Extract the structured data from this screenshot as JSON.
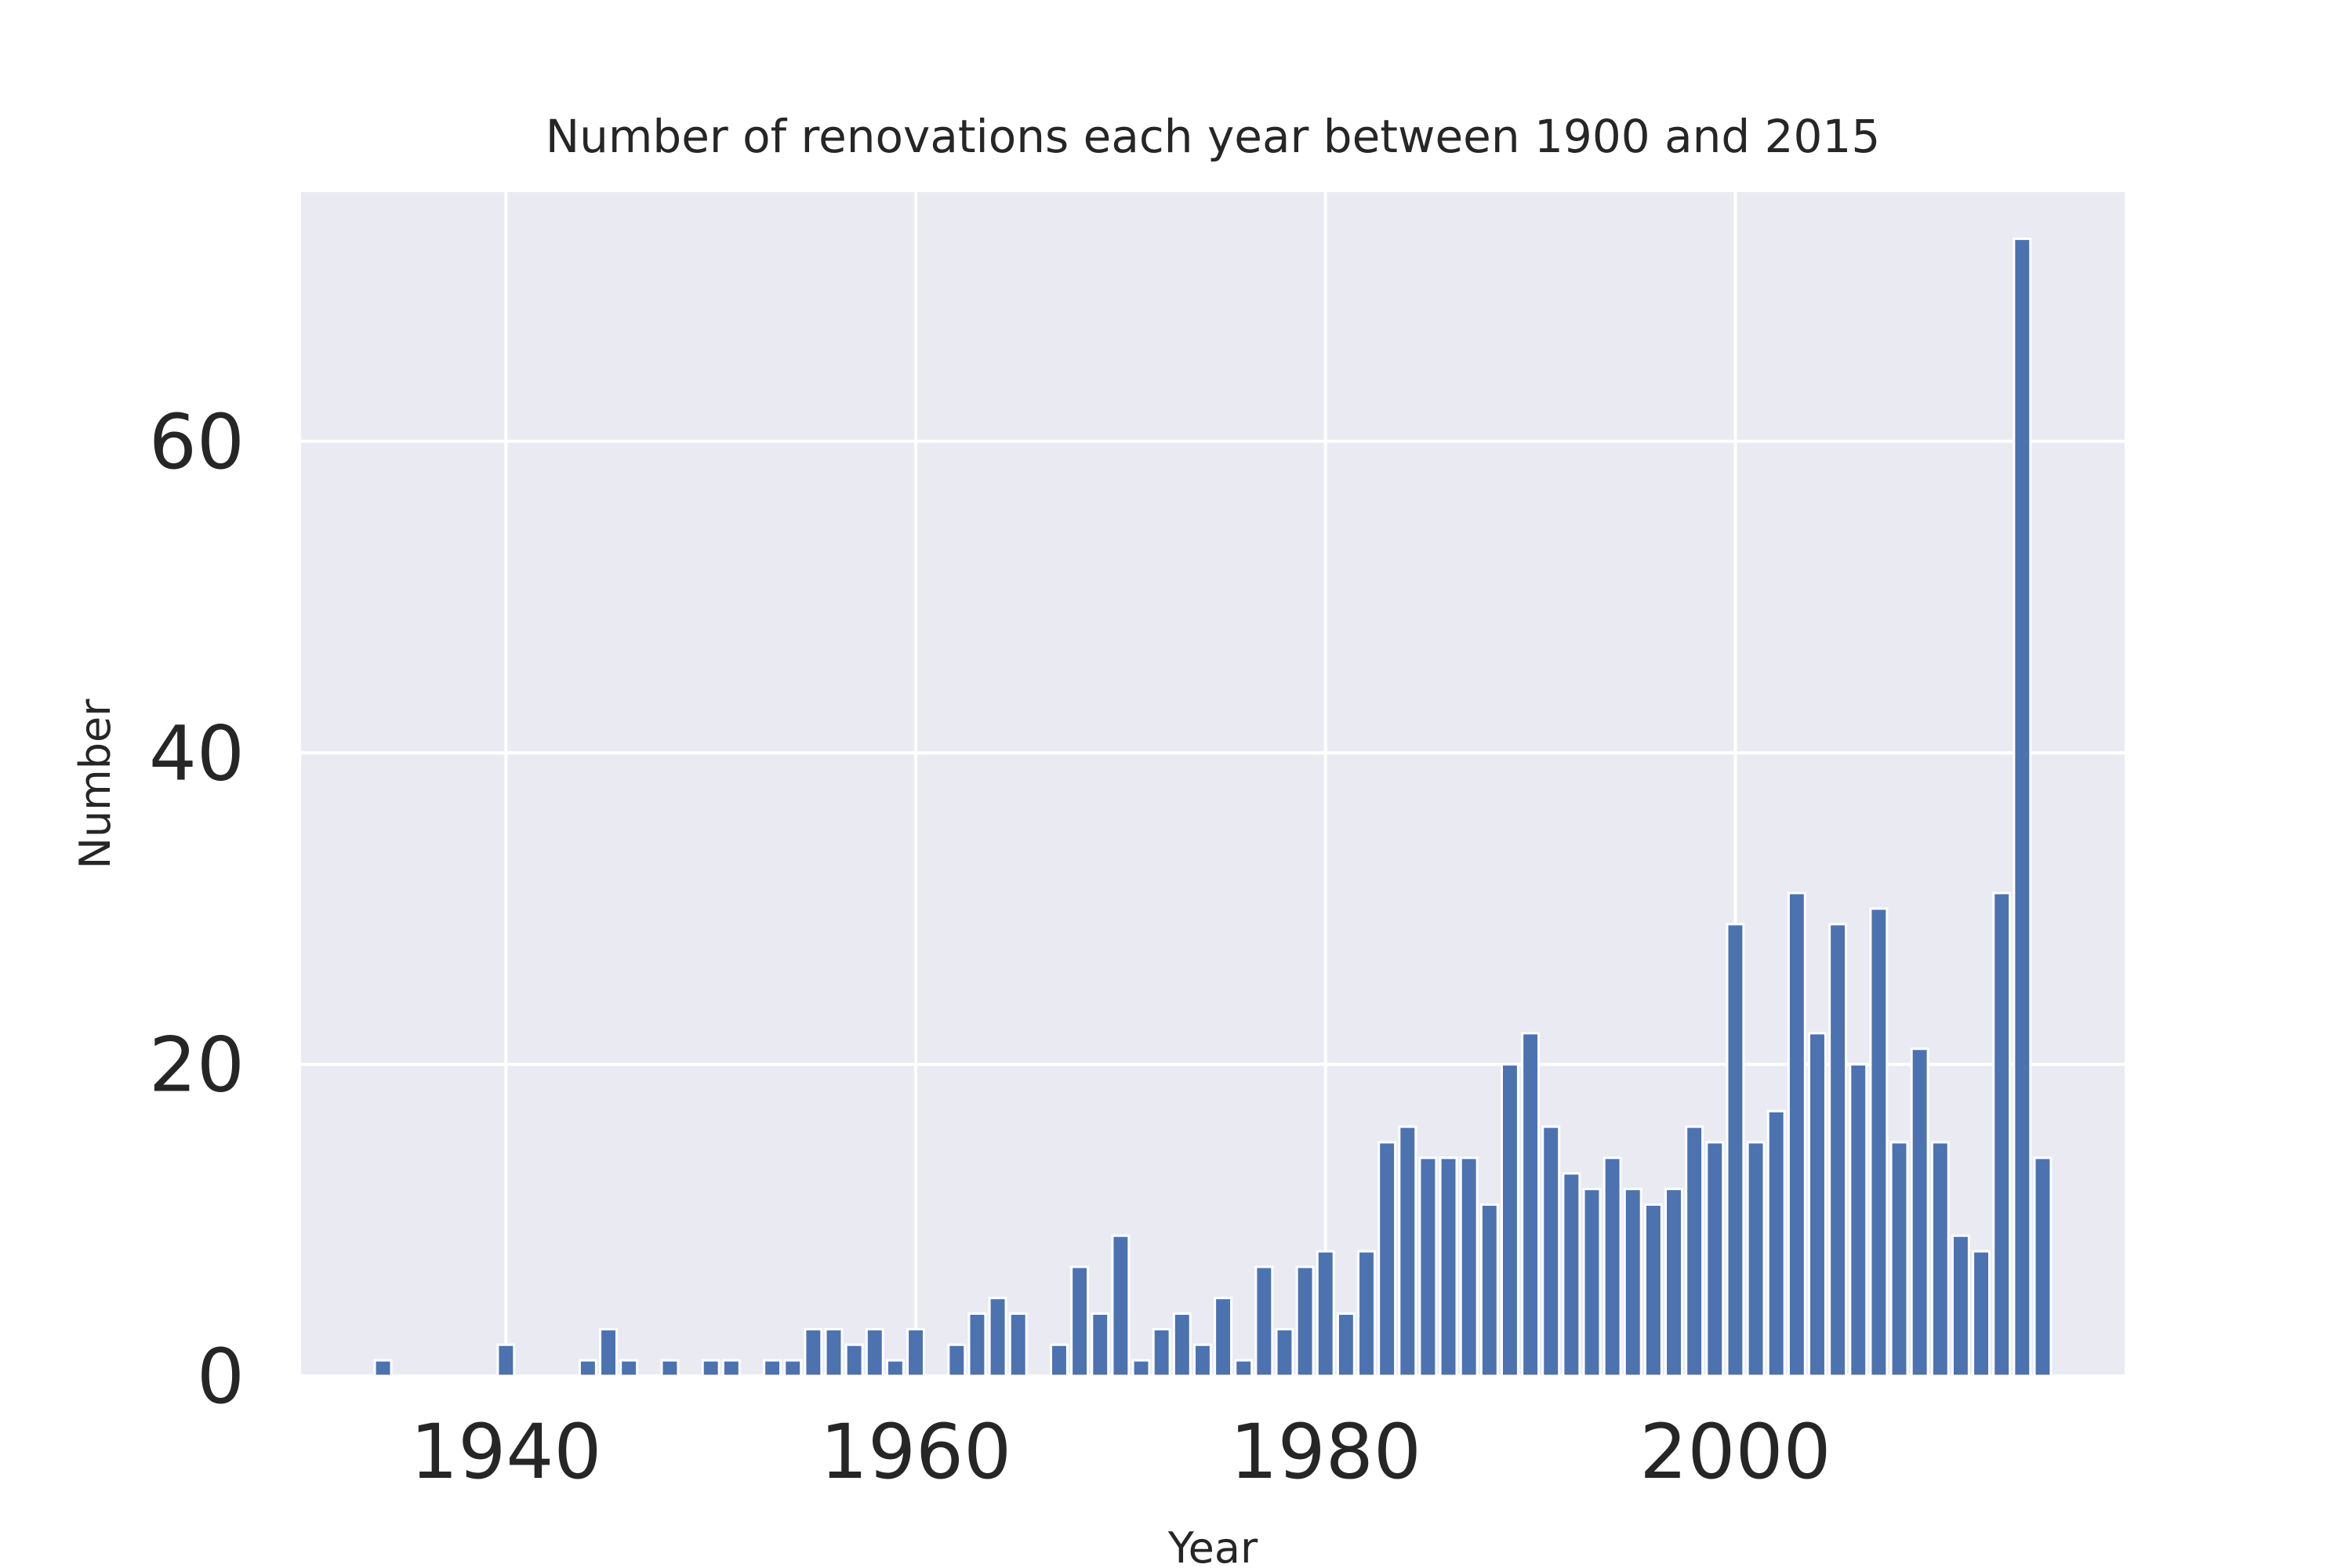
{
  "chart_data": {
    "type": "bar",
    "title": "Number of renovations each year between 1900 and 2015",
    "xlabel": "Year",
    "ylabel": "Number",
    "xlim": [
      1930,
      2019
    ],
    "ylim": [
      0,
      76
    ],
    "xticks": [
      1940,
      1960,
      1980,
      2000
    ],
    "yticks": [
      0,
      20,
      40,
      60
    ],
    "grid": true,
    "legend": "none",
    "colors": {
      "bar": "#4c72b0",
      "bar_edge": "#ffffff",
      "plot_bg": "#eaeaf2",
      "grid": "#ffffff",
      "text": "#262626"
    },
    "x": [
      1934,
      1940,
      1944,
      1945,
      1946,
      1948,
      1950,
      1951,
      1953,
      1954,
      1955,
      1956,
      1957,
      1958,
      1959,
      1960,
      1962,
      1963,
      1964,
      1965,
      1967,
      1968,
      1969,
      1970,
      1971,
      1972,
      1973,
      1974,
      1975,
      1976,
      1977,
      1978,
      1979,
      1980,
      1981,
      1982,
      1983,
      1984,
      1985,
      1986,
      1987,
      1988,
      1989,
      1990,
      1991,
      1992,
      1993,
      1994,
      1995,
      1996,
      1997,
      1998,
      1999,
      2000,
      2001,
      2002,
      2003,
      2004,
      2005,
      2006,
      2007,
      2008,
      2009,
      2010,
      2011,
      2012,
      2013,
      2014,
      2015
    ],
    "values": [
      1,
      2,
      1,
      3,
      1,
      1,
      1,
      1,
      1,
      1,
      3,
      3,
      2,
      3,
      1,
      3,
      2,
      4,
      5,
      4,
      2,
      7,
      4,
      9,
      1,
      3,
      4,
      2,
      5,
      1,
      7,
      3,
      7,
      8,
      4,
      8,
      15,
      16,
      14,
      14,
      14,
      11,
      20,
      22,
      16,
      13,
      12,
      14,
      12,
      11,
      12,
      16,
      15,
      29,
      15,
      17,
      31,
      22,
      29,
      20,
      30,
      15,
      21,
      15,
      9,
      8,
      31,
      73,
      14
    ]
  }
}
